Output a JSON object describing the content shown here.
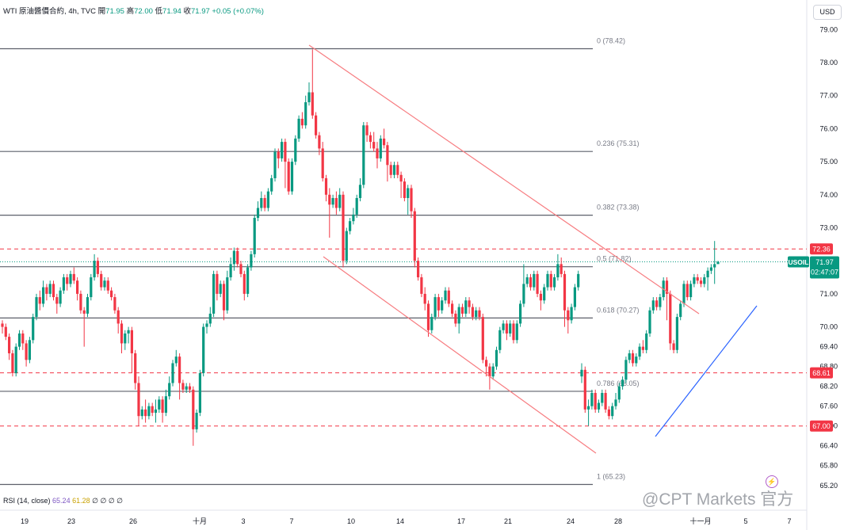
{
  "header": {
    "symbol": "WTI 原油醬價合約, 4h, TVC",
    "open_label": "開",
    "open": "71.95",
    "high_label": "高",
    "high": "72.00",
    "low_label": "低",
    "low": "71.94",
    "close_label": "收",
    "close": "71.97",
    "change": "+0.05 (+0.07%)"
  },
  "currency": "USD",
  "indicator": {
    "label": "RSI (14, close)",
    "v1": "65.24",
    "v2": "61.28",
    "rest": "∅ ∅ ∅ ∅"
  },
  "watermark": "@CPT Markets 官方",
  "colors": {
    "up": "#089981",
    "down": "#f23645",
    "fib": "#5d606b",
    "hline": "#f23645",
    "channel": "#f77c80",
    "trend": "#2962ff"
  },
  "chart_data": {
    "type": "candlestick",
    "timeframe": "4h",
    "ylim": [
      64.9,
      79.3
    ],
    "y_ticks": [
      "79.00",
      "78.00",
      "77.00",
      "76.00",
      "75.00",
      "74.00",
      "73.00",
      "72.00",
      "71.00",
      "70.00",
      "69.40",
      "68.80",
      "68.20",
      "67.60",
      "67.00",
      "66.40",
      "65.80",
      "65.20"
    ],
    "x_ticks": [
      "19",
      "23",
      "26",
      "十月",
      "3",
      "7",
      "10",
      "14",
      "17",
      "21",
      "24",
      "28",
      "十一月",
      "5",
      "7"
    ],
    "fib_levels": [
      {
        "label": "0 (78.42)",
        "price": 78.42
      },
      {
        "label": "0.236 (75.31)",
        "price": 75.31
      },
      {
        "label": "0.382 (73.38)",
        "price": 73.38
      },
      {
        "label": "0.5 (71.82)",
        "price": 71.82
      },
      {
        "label": "0.618 (70.27)",
        "price": 70.27
      },
      {
        "label": "0.786 (68.05)",
        "price": 68.05
      },
      {
        "label": "1 (65.23)",
        "price": 65.23
      }
    ],
    "horizontal_lines": [
      {
        "label": "72.36",
        "price": 72.36
      },
      {
        "label": "68.61",
        "price": 68.61
      },
      {
        "label": "67.00",
        "price": 67.0
      }
    ],
    "current_price": {
      "symbol": "USOIL",
      "price": "71.97",
      "countdown": "02:47:07",
      "value": 71.97
    },
    "trendlines": [
      {
        "kind": "channel-upper",
        "from": [
          "Oct 8",
          78.4
        ],
        "to": [
          "Oct 30",
          70.4
        ]
      },
      {
        "kind": "channel-lower",
        "from": [
          "Oct 7",
          71.9
        ],
        "to": [
          "Oct 26",
          66.1
        ]
      },
      {
        "kind": "support",
        "from": [
          "Oct 29",
          66.7
        ],
        "to": [
          "Nov 6",
          70.5
        ]
      }
    ],
    "candles": [
      [
        70.1,
        70.0,
        70.2,
        69.8
      ],
      [
        70.0,
        69.7,
        70.1,
        69.6
      ],
      [
        69.7,
        69.2,
        69.8,
        69.0
      ],
      [
        69.2,
        68.6,
        69.3,
        68.5
      ],
      [
        68.6,
        69.4,
        69.5,
        68.5
      ],
      [
        69.4,
        69.8,
        69.9,
        69.3
      ],
      [
        69.8,
        69.5,
        69.9,
        69.3
      ],
      [
        69.5,
        69.0,
        69.6,
        68.8
      ],
      [
        69.0,
        69.6,
        69.7,
        68.9
      ],
      [
        69.6,
        70.3,
        70.4,
        69.5
      ],
      [
        70.3,
        70.9,
        71.0,
        70.2
      ],
      [
        70.9,
        70.7,
        71.1,
        70.5
      ],
      [
        70.7,
        71.2,
        71.4,
        70.6
      ],
      [
        71.2,
        71.0,
        71.3,
        70.8
      ],
      [
        71.0,
        71.3,
        71.4,
        70.9
      ],
      [
        71.3,
        70.9,
        71.4,
        70.8
      ],
      [
        70.9,
        70.7,
        71.0,
        70.4
      ],
      [
        70.7,
        71.1,
        71.2,
        70.6
      ],
      [
        71.1,
        71.5,
        71.6,
        71.0
      ],
      [
        71.5,
        71.3,
        71.6,
        71.1
      ],
      [
        71.3,
        71.6,
        71.7,
        71.2
      ],
      [
        71.6,
        71.4,
        71.8,
        71.3
      ],
      [
        71.4,
        71.0,
        71.5,
        70.8
      ],
      [
        71.0,
        70.5,
        71.1,
        70.4
      ],
      [
        70.5,
        70.4,
        70.6,
        69.4
      ],
      [
        70.4,
        70.9,
        71.0,
        70.3
      ],
      [
        70.9,
        71.5,
        71.6,
        70.8
      ],
      [
        71.5,
        72.0,
        72.2,
        71.4
      ],
      [
        72.0,
        71.6,
        72.1,
        71.5
      ],
      [
        71.6,
        71.2,
        71.7,
        71.1
      ],
      [
        71.2,
        71.4,
        71.5,
        71.1
      ],
      [
        71.4,
        71.1,
        71.5,
        71.0
      ],
      [
        71.1,
        70.9,
        71.2,
        70.8
      ],
      [
        70.9,
        70.5,
        71.0,
        70.4
      ],
      [
        70.5,
        70.1,
        70.6,
        69.8
      ],
      [
        70.1,
        69.5,
        70.2,
        69.2
      ],
      [
        69.5,
        69.8,
        69.9,
        69.3
      ],
      [
        69.8,
        69.9,
        70.0,
        69.5
      ],
      [
        69.9,
        69.2,
        70.0,
        68.6
      ],
      [
        69.2,
        68.3,
        69.3,
        68.1
      ],
      [
        68.3,
        67.3,
        68.5,
        67.0
      ],
      [
        67.3,
        67.5,
        67.6,
        67.2
      ],
      [
        67.5,
        67.3,
        67.8,
        67.1
      ],
      [
        67.3,
        67.6,
        67.7,
        67.2
      ],
      [
        67.6,
        67.4,
        67.7,
        67.3
      ],
      [
        67.4,
        67.5,
        67.8,
        67.1
      ],
      [
        67.5,
        67.8,
        67.9,
        67.4
      ],
      [
        67.8,
        67.4,
        67.9,
        67.1
      ],
      [
        67.4,
        67.9,
        68.1,
        67.3
      ],
      [
        67.9,
        68.3,
        68.5,
        67.8
      ],
      [
        68.3,
        68.9,
        69.0,
        68.2
      ],
      [
        68.9,
        69.1,
        69.3,
        68.8
      ],
      [
        69.1,
        68.3,
        69.2,
        67.8
      ],
      [
        68.3,
        68.1,
        68.4,
        68.0
      ],
      [
        68.1,
        68.2,
        68.3,
        68.0
      ],
      [
        68.2,
        68.1,
        68.3,
        68.0
      ],
      [
        68.1,
        66.9,
        68.2,
        66.4
      ],
      [
        66.9,
        67.4,
        67.5,
        66.8
      ],
      [
        67.4,
        68.6,
        68.7,
        67.3
      ],
      [
        68.6,
        70.0,
        70.1,
        68.5
      ],
      [
        70.0,
        70.1,
        70.2,
        69.8
      ],
      [
        70.1,
        70.4,
        70.6,
        70.0
      ],
      [
        70.4,
        71.6,
        71.7,
        70.3
      ],
      [
        71.6,
        71.0,
        71.7,
        70.8
      ],
      [
        71.0,
        71.3,
        71.4,
        70.9
      ],
      [
        71.3,
        70.5,
        71.4,
        70.2
      ],
      [
        70.5,
        71.5,
        71.7,
        70.4
      ],
      [
        71.5,
        71.9,
        72.1,
        71.4
      ],
      [
        71.9,
        72.3,
        72.4,
        71.7
      ],
      [
        72.3,
        71.9,
        72.4,
        71.8
      ],
      [
        71.9,
        71.6,
        72.0,
        71.5
      ],
      [
        71.6,
        71.0,
        71.7,
        70.8
      ],
      [
        71.0,
        71.8,
        71.9,
        70.9
      ],
      [
        71.8,
        72.2,
        72.3,
        71.7
      ],
      [
        72.2,
        73.3,
        73.4,
        72.1
      ],
      [
        73.3,
        73.6,
        73.8,
        73.2
      ],
      [
        73.6,
        73.9,
        74.1,
        73.5
      ],
      [
        73.9,
        73.6,
        74.0,
        73.5
      ],
      [
        73.6,
        74.1,
        74.2,
        73.5
      ],
      [
        74.1,
        74.5,
        74.6,
        74.0
      ],
      [
        74.5,
        75.3,
        75.4,
        74.4
      ],
      [
        75.3,
        75.1,
        75.4,
        74.8
      ],
      [
        75.1,
        75.6,
        75.7,
        75.0
      ],
      [
        75.6,
        75.0,
        75.7,
        74.2
      ],
      [
        75.0,
        74.1,
        75.1,
        74.0
      ],
      [
        74.1,
        75.0,
        75.1,
        74.0
      ],
      [
        75.0,
        75.7,
        75.8,
        74.9
      ],
      [
        75.7,
        76.3,
        76.4,
        75.6
      ],
      [
        76.3,
        76.1,
        76.5,
        76.0
      ],
      [
        76.1,
        76.8,
        77.0,
        76.0
      ],
      [
        76.8,
        77.1,
        77.4,
        76.7
      ],
      [
        77.1,
        76.4,
        78.4,
        76.3
      ],
      [
        76.4,
        75.8,
        76.5,
        75.7
      ],
      [
        75.8,
        75.4,
        75.9,
        75.2
      ],
      [
        75.4,
        74.5,
        75.6,
        74.4
      ],
      [
        74.5,
        74.0,
        74.6,
        73.8
      ],
      [
        74.0,
        73.7,
        74.2,
        72.7
      ],
      [
        73.7,
        73.9,
        74.0,
        73.6
      ],
      [
        73.9,
        73.6,
        74.1,
        73.4
      ],
      [
        73.6,
        74.0,
        74.2,
        73.5
      ],
      [
        74.0,
        72.0,
        74.1,
        71.8
      ],
      [
        72.0,
        72.9,
        73.0,
        71.9
      ],
      [
        72.9,
        73.2,
        73.3,
        72.8
      ],
      [
        73.2,
        73.4,
        73.6,
        73.1
      ],
      [
        73.4,
        73.9,
        74.0,
        73.3
      ],
      [
        73.9,
        74.3,
        74.5,
        73.8
      ],
      [
        74.3,
        76.1,
        76.2,
        74.2
      ],
      [
        76.1,
        75.8,
        76.2,
        75.6
      ],
      [
        75.8,
        75.6,
        75.9,
        75.4
      ],
      [
        75.6,
        75.4,
        75.9,
        75.3
      ],
      [
        75.4,
        75.1,
        75.6,
        74.8
      ],
      [
        75.1,
        75.7,
        75.8,
        75.0
      ],
      [
        75.7,
        75.5,
        76.0,
        75.4
      ],
      [
        75.5,
        74.9,
        75.6,
        74.4
      ],
      [
        74.9,
        74.6,
        75.0,
        74.5
      ],
      [
        74.6,
        74.9,
        75.0,
        74.5
      ],
      [
        74.9,
        74.6,
        75.0,
        74.5
      ],
      [
        74.6,
        74.4,
        74.7,
        73.9
      ],
      [
        74.4,
        73.9,
        74.5,
        73.8
      ],
      [
        73.9,
        74.2,
        74.3,
        73.4
      ],
      [
        74.2,
        73.5,
        74.3,
        73.3
      ],
      [
        73.5,
        72.0,
        73.6,
        71.8
      ],
      [
        72.0,
        71.5,
        72.1,
        71.4
      ],
      [
        71.5,
        71.0,
        71.6,
        70.9
      ],
      [
        71.0,
        70.7,
        71.2,
        70.5
      ],
      [
        70.7,
        69.9,
        70.8,
        69.7
      ],
      [
        69.9,
        70.3,
        70.4,
        69.8
      ],
      [
        70.3,
        70.9,
        71.0,
        70.2
      ],
      [
        70.9,
        70.5,
        71.0,
        70.3
      ],
      [
        70.5,
        70.8,
        70.9,
        70.4
      ],
      [
        70.8,
        71.1,
        71.2,
        70.7
      ],
      [
        71.1,
        70.7,
        71.2,
        70.6
      ],
      [
        70.7,
        70.4,
        70.8,
        70.3
      ],
      [
        70.4,
        70.1,
        70.5,
        70.0
      ],
      [
        70.1,
        70.6,
        70.7,
        69.8
      ],
      [
        70.6,
        70.4,
        70.7,
        70.3
      ],
      [
        70.4,
        70.8,
        70.9,
        70.3
      ],
      [
        70.8,
        70.6,
        70.9,
        70.4
      ],
      [
        70.6,
        70.3,
        70.7,
        70.2
      ],
      [
        70.3,
        70.5,
        70.6,
        70.2
      ],
      [
        70.5,
        70.3,
        70.6,
        70.2
      ],
      [
        70.3,
        69.0,
        70.4,
        68.9
      ],
      [
        69.0,
        68.8,
        69.1,
        68.5
      ],
      [
        68.8,
        68.5,
        68.9,
        68.1
      ],
      [
        68.5,
        68.8,
        68.9,
        68.4
      ],
      [
        68.8,
        69.3,
        69.4,
        68.7
      ],
      [
        69.3,
        69.9,
        70.0,
        69.2
      ],
      [
        69.9,
        70.1,
        70.2,
        69.8
      ],
      [
        70.1,
        69.8,
        70.2,
        69.6
      ],
      [
        69.8,
        70.1,
        70.2,
        69.7
      ],
      [
        70.1,
        69.6,
        70.2,
        69.5
      ],
      [
        69.6,
        70.1,
        70.2,
        69.5
      ],
      [
        70.1,
        70.7,
        70.8,
        70.0
      ],
      [
        70.7,
        71.3,
        71.9,
        70.6
      ],
      [
        71.3,
        71.5,
        71.6,
        71.2
      ],
      [
        71.5,
        71.2,
        71.6,
        71.1
      ],
      [
        71.2,
        71.6,
        71.7,
        71.1
      ],
      [
        71.6,
        71.0,
        71.7,
        70.9
      ],
      [
        71.0,
        70.8,
        71.1,
        70.5
      ],
      [
        70.8,
        71.2,
        71.3,
        70.7
      ],
      [
        71.2,
        71.6,
        71.7,
        71.1
      ],
      [
        71.6,
        71.2,
        71.7,
        71.1
      ],
      [
        71.2,
        71.5,
        71.6,
        71.1
      ],
      [
        71.5,
        71.9,
        72.2,
        71.4
      ],
      [
        71.9,
        71.6,
        72.1,
        71.5
      ],
      [
        71.6,
        70.5,
        71.7,
        70.0
      ],
      [
        70.5,
        70.2,
        70.6,
        69.8
      ],
      [
        70.2,
        70.6,
        70.7,
        70.1
      ],
      [
        70.6,
        71.2,
        71.3,
        70.5
      ],
      [
        71.2,
        71.6,
        71.7,
        71.1
      ],
      [
        68.5,
        68.7,
        68.9,
        68.3
      ],
      [
        68.7,
        67.5,
        68.8,
        67.4
      ],
      [
        67.5,
        67.6,
        67.8,
        67.0
      ],
      [
        67.6,
        68.0,
        68.1,
        67.5
      ],
      [
        68.0,
        67.5,
        68.1,
        67.4
      ],
      [
        67.5,
        67.7,
        67.8,
        67.4
      ],
      [
        67.7,
        68.0,
        68.1,
        67.6
      ],
      [
        68.0,
        67.5,
        68.1,
        67.4
      ],
      [
        67.5,
        67.3,
        67.6,
        67.2
      ],
      [
        67.3,
        67.6,
        67.7,
        67.2
      ],
      [
        67.6,
        67.8,
        68.0,
        67.5
      ],
      [
        67.8,
        68.2,
        68.3,
        67.7
      ],
      [
        68.2,
        68.4,
        68.5,
        68.1
      ],
      [
        68.4,
        69.0,
        69.1,
        68.3
      ],
      [
        69.0,
        69.2,
        69.3,
        68.9
      ],
      [
        69.2,
        68.9,
        69.3,
        68.8
      ],
      [
        68.9,
        69.1,
        69.2,
        68.8
      ],
      [
        69.1,
        69.4,
        69.5,
        69.0
      ],
      [
        69.4,
        69.3,
        69.6,
        69.2
      ],
      [
        69.3,
        69.8,
        69.9,
        69.2
      ],
      [
        69.8,
        70.5,
        70.6,
        69.7
      ],
      [
        70.5,
        70.8,
        70.9,
        70.4
      ],
      [
        70.8,
        70.6,
        70.9,
        70.5
      ],
      [
        70.6,
        70.9,
        71.0,
        70.5
      ],
      [
        70.9,
        71.4,
        71.5,
        70.8
      ],
      [
        71.4,
        71.0,
        71.5,
        70.2
      ],
      [
        71.0,
        69.5,
        71.1,
        69.3
      ],
      [
        69.5,
        69.3,
        69.6,
        69.2
      ],
      [
        69.3,
        70.3,
        70.4,
        69.2
      ],
      [
        70.3,
        70.7,
        70.8,
        70.2
      ],
      [
        70.7,
        71.3,
        71.4,
        70.6
      ],
      [
        71.3,
        70.9,
        71.4,
        70.8
      ],
      [
        70.9,
        71.3,
        71.4,
        70.8
      ],
      [
        71.3,
        71.5,
        71.6,
        71.2
      ],
      [
        71.5,
        71.4,
        71.6,
        71.3
      ],
      [
        71.4,
        71.3,
        71.5,
        71.2
      ],
      [
        71.3,
        71.5,
        71.6,
        71.2
      ],
      [
        71.5,
        71.7,
        71.8,
        71.1
      ],
      [
        71.7,
        71.8,
        71.9,
        71.6
      ],
      [
        71.8,
        71.9,
        72.6,
        71.3
      ],
      [
        71.9,
        71.97,
        72.0,
        71.94
      ]
    ]
  }
}
